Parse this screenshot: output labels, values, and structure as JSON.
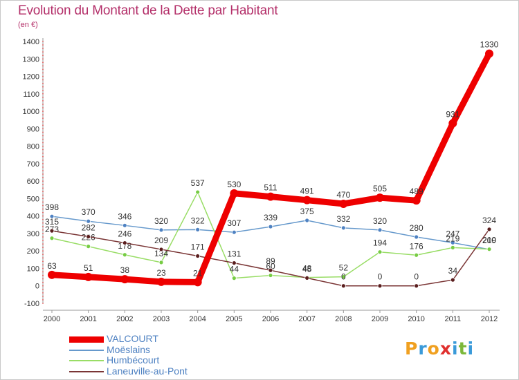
{
  "title": "Evolution du Montant de la Dette par Habitant",
  "subtitle": "(en €)",
  "brand": {
    "letters": [
      "P",
      "r",
      "o",
      "x",
      "i",
      "t",
      "i"
    ],
    "colors": [
      "#f0a020",
      "#3a9ad9",
      "#f0a020",
      "#e0302e",
      "#3a9ad9",
      "#7cb83a",
      "#3a9ad9"
    ]
  },
  "chart_data": {
    "type": "line",
    "x": [
      2000,
      2001,
      2002,
      2003,
      2004,
      2005,
      2006,
      2007,
      2008,
      2009,
      2010,
      2011,
      2012
    ],
    "ylim": [
      -100,
      1400
    ],
    "yticks": [
      -100,
      0,
      100,
      200,
      300,
      400,
      500,
      600,
      700,
      800,
      900,
      1000,
      1100,
      1200,
      1300,
      1400
    ],
    "grid": false,
    "legend_position": "bottom-left",
    "series": [
      {
        "name": "Moëslains",
        "color": "#6699cc",
        "marker_color": "#4f82c2",
        "values": [
          398,
          370,
          346,
          320,
          322,
          307,
          339,
          375,
          332,
          320,
          280,
          247,
          209
        ],
        "labels": [
          "398",
          "370",
          "346",
          "320",
          "322",
          "307",
          "339",
          "375",
          "332",
          "320",
          "280",
          "247",
          "209"
        ]
      },
      {
        "name": "Humbécourt",
        "color": "#99dd66",
        "marker_color": "#77cc44",
        "values": [
          273,
          226,
          178,
          134,
          537,
          44,
          60,
          48,
          52,
          194,
          176,
          219,
          210
        ],
        "labels": [
          "273",
          "226",
          "178",
          "134",
          "537",
          "44",
          "60",
          "48",
          "52",
          "194",
          "176",
          "219",
          "210"
        ]
      },
      {
        "name": "Laneuville-au-Pont",
        "color": "#7a3535",
        "marker_color": "#5a1e1e",
        "values": [
          315,
          282,
          246,
          209,
          171,
          131,
          89,
          45,
          0,
          0,
          0,
          34,
          324
        ],
        "labels": [
          "315",
          "282",
          "246",
          "209",
          "171",
          "131",
          "89",
          "45",
          "0",
          "0",
          "0",
          "34",
          "324"
        ]
      },
      {
        "name": "VALCOURT",
        "color": "#ee0000",
        "marker_color": "#ee0000",
        "values": [
          63,
          51,
          38,
          23,
          21,
          530,
          511,
          491,
          470,
          505,
          489,
          931,
          1330
        ],
        "labels": [
          "63",
          "51",
          "38",
          "23",
          "21",
          "530",
          "511",
          "491",
          "470",
          "505",
          "489",
          "931",
          "1330"
        ]
      }
    ]
  },
  "legend": [
    {
      "label": "VALCOURT",
      "color": "#ee0000"
    },
    {
      "label": "Moëslains",
      "color": "#6699cc"
    },
    {
      "label": "Humbécourt",
      "color": "#99dd66"
    },
    {
      "label": "Laneuville-au-Pont",
      "color": "#7a3535"
    }
  ]
}
